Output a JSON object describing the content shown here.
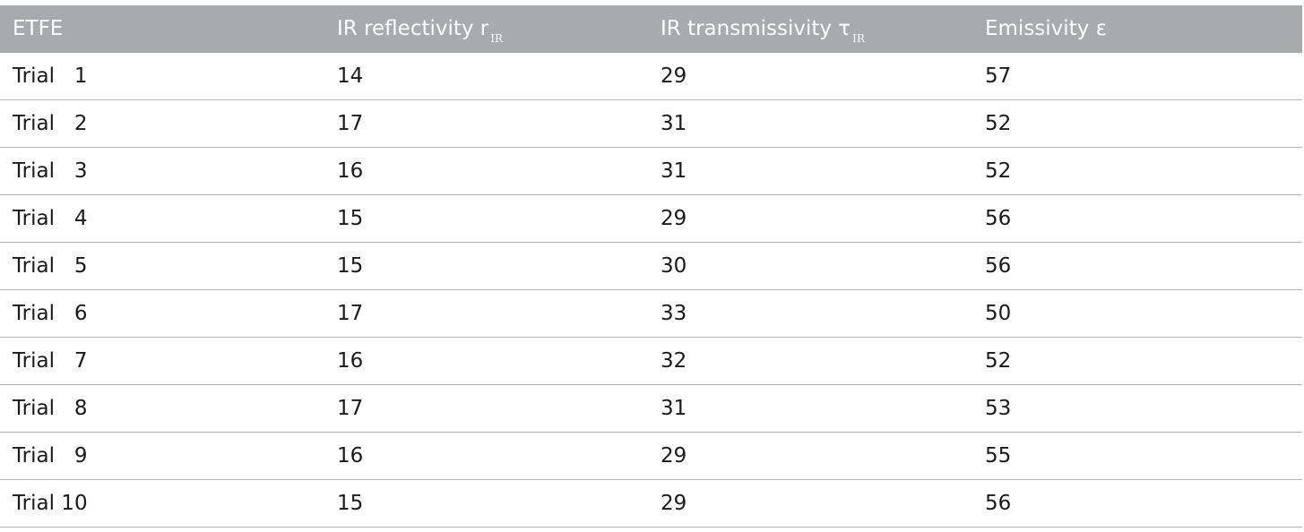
{
  "table": {
    "header": {
      "col0": "ETFE",
      "col1_main": "IR reflectivity r",
      "col1_sub": "IR",
      "col2_main": "IR transmissivity τ",
      "col2_sub": "IR",
      "col3": "Emissivity ε"
    },
    "rows": [
      {
        "label": "Trial   1",
        "r": "14",
        "t": "29",
        "e": "57"
      },
      {
        "label": "Trial   2",
        "r": "17",
        "t": "31",
        "e": "52"
      },
      {
        "label": "Trial   3",
        "r": "16",
        "t": "31",
        "e": "52"
      },
      {
        "label": "Trial   4",
        "r": "15",
        "t": "29",
        "e": "56"
      },
      {
        "label": "Trial   5",
        "r": "15",
        "t": "30",
        "e": "56"
      },
      {
        "label": "Trial   6",
        "r": "17",
        "t": "33",
        "e": "50"
      },
      {
        "label": "Trial   7",
        "r": "16",
        "t": "32",
        "e": "52"
      },
      {
        "label": "Trial   8",
        "r": "17",
        "t": "31",
        "e": "53"
      },
      {
        "label": "Trial   9",
        "r": "16",
        "t": "29",
        "e": "55"
      },
      {
        "label": "Trial 10",
        "r": "15",
        "t": "29",
        "e": "56"
      }
    ]
  }
}
